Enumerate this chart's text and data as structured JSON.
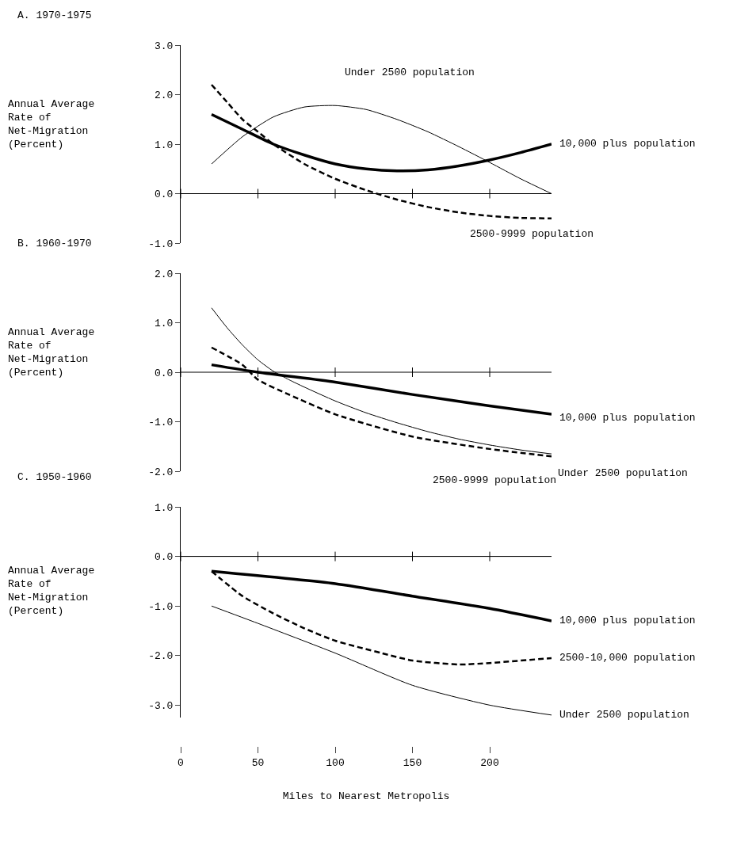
{
  "chart_data": [
    {
      "type": "line",
      "title": "A. 1970-1975",
      "ylabel": "Annual Average\nRate of\nNet-Migration\n(Percent)",
      "xlim": [
        0,
        240
      ],
      "xticks": [
        0,
        50,
        100,
        150,
        200
      ],
      "ylim": [
        -1,
        3
      ],
      "yticks": [
        {
          "value": -1,
          "label": "-1.0"
        },
        {
          "value": 0,
          "label": "0.0"
        },
        {
          "value": 1,
          "label": "1.0"
        },
        {
          "value": 2,
          "label": "2.0"
        },
        {
          "value": 3,
          "label": "3.0"
        }
      ],
      "tick_labels": "y",
      "series": [
        {
          "name": "Under 2500 population",
          "color": "#000000",
          "line_style": "solid",
          "x": [
            20,
            40,
            60,
            80,
            100,
            120,
            140,
            160,
            180,
            200,
            220,
            240
          ],
          "values": [
            0.6,
            1.15,
            1.55,
            1.75,
            1.78,
            1.7,
            1.5,
            1.25,
            0.95,
            0.63,
            0.3,
            0.0
          ]
        },
        {
          "name": "10,000 plus population",
          "color": "#000000",
          "line_style": "solid",
          "x": [
            20,
            40,
            60,
            80,
            100,
            120,
            140,
            160,
            180,
            200,
            220,
            240
          ],
          "values": [
            1.6,
            1.3,
            1.0,
            0.78,
            0.6,
            0.5,
            0.46,
            0.48,
            0.56,
            0.68,
            0.83,
            1.0
          ]
        },
        {
          "name": "2500-9999 population",
          "color": "#000000",
          "line_style": "dashed",
          "x": [
            20,
            30,
            40,
            50,
            60,
            80,
            100,
            120,
            140,
            160,
            180,
            200,
            220,
            240
          ],
          "values": [
            2.2,
            1.85,
            1.5,
            1.25,
            1.0,
            0.6,
            0.3,
            0.07,
            -0.12,
            -0.27,
            -0.38,
            -0.45,
            -0.49,
            -0.5
          ]
        }
      ]
    },
    {
      "type": "line",
      "title": "B. 1960-1970",
      "ylabel": "Annual Average\nRate of\nNet-Migration\n(Percent)",
      "xlim": [
        0,
        240
      ],
      "xticks": [
        0,
        50,
        100,
        150,
        200
      ],
      "ylim": [
        -2,
        2
      ],
      "yticks": [
        {
          "value": -2,
          "label": "-2.0"
        },
        {
          "value": -1,
          "label": "-1.0"
        },
        {
          "value": 0,
          "label": "0.0"
        },
        {
          "value": 1,
          "label": "1.0"
        },
        {
          "value": 2,
          "label": "2.0"
        }
      ],
      "tick_labels": "y",
      "series": [
        {
          "name": "Under 2500 population",
          "color": "#000000",
          "line_style": "solid",
          "x": [
            20,
            30,
            40,
            50,
            60,
            70,
            80,
            100,
            120,
            140,
            160,
            180,
            200,
            220,
            240
          ],
          "values": [
            1.3,
            0.9,
            0.55,
            0.25,
            0.02,
            -0.15,
            -0.3,
            -0.58,
            -0.82,
            -1.02,
            -1.2,
            -1.35,
            -1.47,
            -1.57,
            -1.65
          ]
        },
        {
          "name": "10,000 plus population",
          "color": "#000000",
          "line_style": "solid",
          "x": [
            20,
            50,
            100,
            150,
            200,
            240
          ],
          "values": [
            0.15,
            0.0,
            -0.2,
            -0.45,
            -0.68,
            -0.85
          ]
        },
        {
          "name": "2500-9999 population",
          "color": "#000000",
          "line_style": "dashed",
          "x": [
            20,
            40,
            50,
            70,
            100,
            150,
            200,
            240
          ],
          "values": [
            0.5,
            0.15,
            -0.15,
            -0.45,
            -0.85,
            -1.3,
            -1.55,
            -1.7
          ]
        }
      ]
    },
    {
      "type": "line",
      "title": "C. 1950-1960",
      "ylabel": "Annual Average\nRate of\nNet-Migration\n(Percent)",
      "xlabel": "Miles to Nearest Metropolis",
      "xlim": [
        0,
        240
      ],
      "xticks": [
        0,
        50,
        100,
        150,
        200
      ],
      "ylim": [
        -3.25,
        1
      ],
      "yticks": [
        {
          "value": -3,
          "label": "-3.0"
        },
        {
          "value": -2,
          "label": "-2.0"
        },
        {
          "value": -1,
          "label": "-1.0"
        },
        {
          "value": 0,
          "label": "0.0"
        },
        {
          "value": 1,
          "label": "1.0"
        }
      ],
      "series": [
        {
          "name": "Under 2500 population",
          "color": "#000000",
          "line_style": "solid",
          "x": [
            20,
            50,
            100,
            150,
            200,
            240
          ],
          "values": [
            -1.0,
            -1.35,
            -1.95,
            -2.6,
            -3.0,
            -3.2
          ]
        },
        {
          "name": "10,000 plus population",
          "color": "#000000",
          "line_style": "solid",
          "x": [
            20,
            100,
            150,
            200,
            240
          ],
          "values": [
            -0.3,
            -0.55,
            -0.8,
            -1.05,
            -1.3
          ]
        },
        {
          "name": "2500-10,000 population",
          "color": "#000000",
          "line_style": "dashed",
          "x": [
            20,
            40,
            60,
            80,
            100,
            130,
            150,
            180,
            200,
            240
          ],
          "values": [
            -0.3,
            -0.8,
            -1.15,
            -1.45,
            -1.7,
            -1.95,
            -2.1,
            -2.18,
            -2.15,
            -2.05
          ]
        }
      ]
    }
  ]
}
